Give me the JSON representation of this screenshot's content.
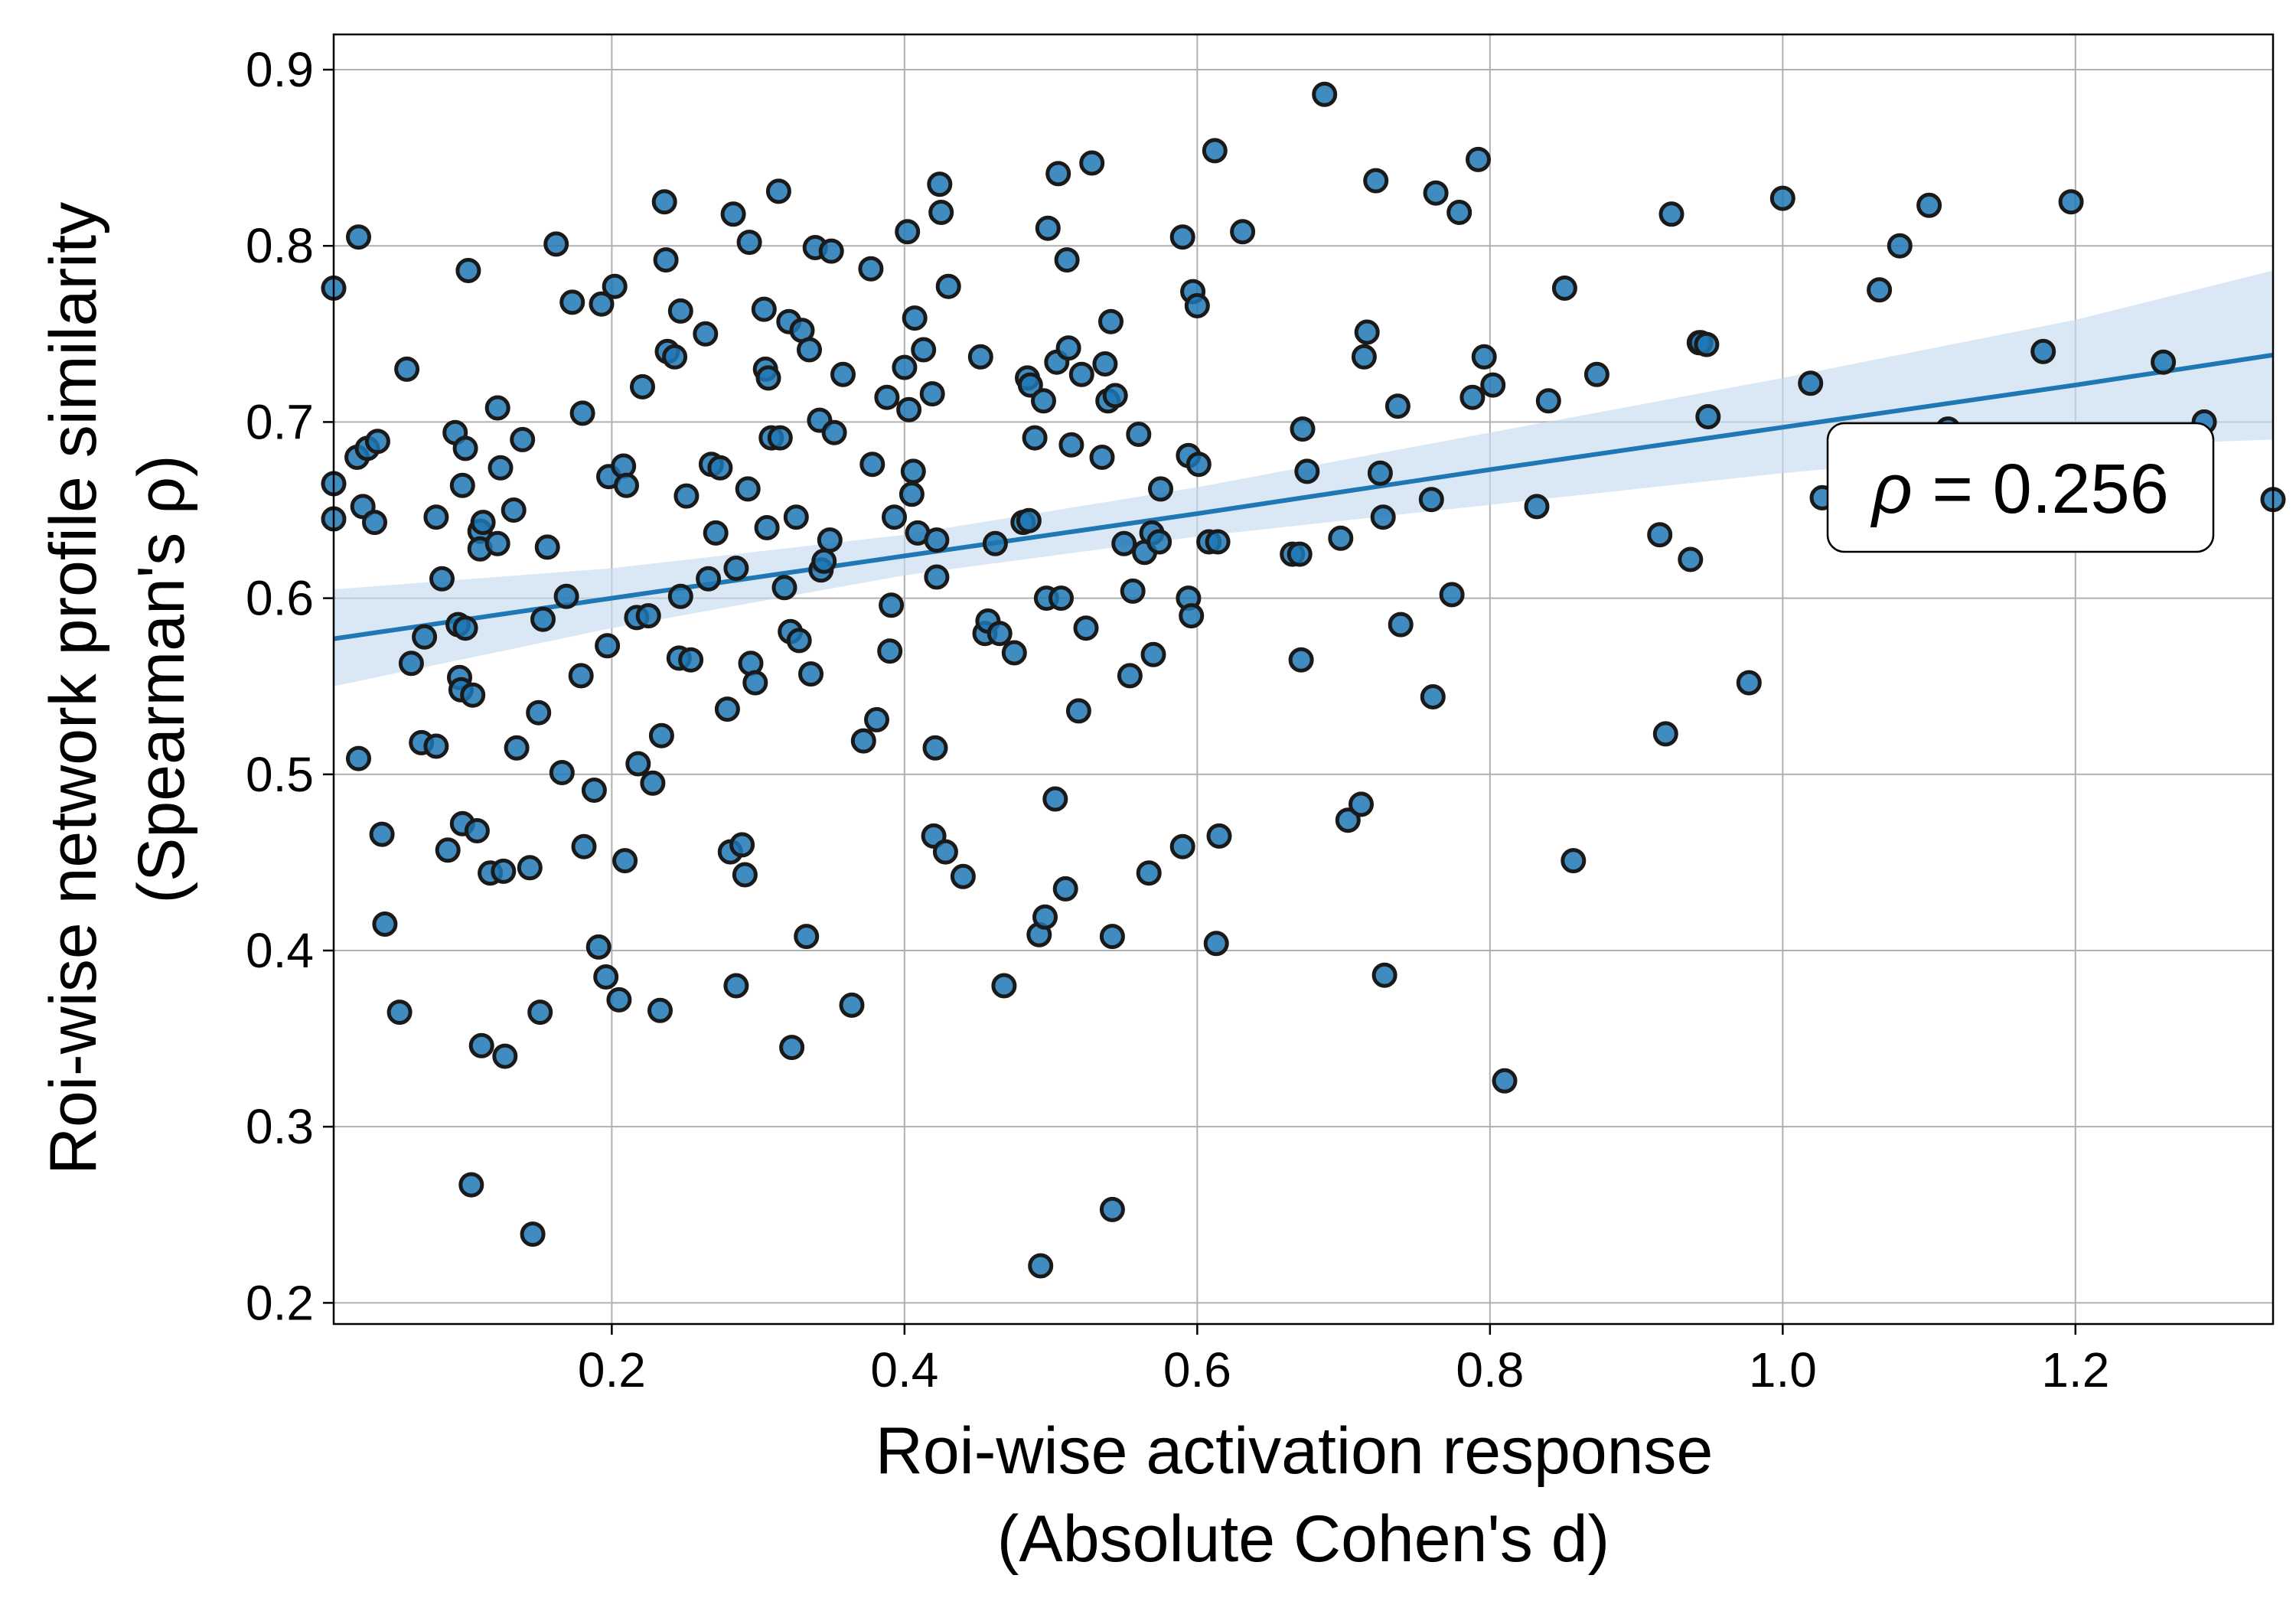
{
  "chart_data": {
    "type": "scatter",
    "title": "",
    "xlabel_lines": [
      "Roi-wise activation response",
      "(Absolute Cohen's d)"
    ],
    "ylabel_lines": [
      "Roi-wise network profile similarity",
      "(Spearman's ρ)"
    ],
    "xlim": [
      0.01,
      1.335
    ],
    "ylim": [
      0.188,
      0.92
    ],
    "xticks": [
      0.2,
      0.4,
      0.6,
      0.8,
      1.0,
      1.2
    ],
    "xtick_labels": [
      "0.2",
      "0.4",
      "0.6",
      "0.8",
      "1.0",
      "1.2"
    ],
    "yticks": [
      0.2,
      0.3,
      0.4,
      0.5,
      0.6,
      0.7,
      0.8,
      0.9
    ],
    "ytick_labels": [
      "0.2",
      "0.3",
      "0.4",
      "0.5",
      "0.6",
      "0.7",
      "0.8",
      "0.9"
    ],
    "grid": true,
    "annotation": {
      "symbol": "ρ",
      "text": " = 0.256",
      "placement": "right-middle"
    },
    "colors": {
      "point_fill": "#1f77b4",
      "point_edge": "#1a1a1a",
      "line": "#1f77b4",
      "band": "#c6dbef",
      "grid": "#b0b0b0"
    },
    "regression": {
      "x": [
        0.01,
        0.2,
        0.4,
        0.6,
        0.8,
        1.0,
        1.2,
        1.335
      ],
      "y": [
        0.577,
        0.6,
        0.624,
        0.648,
        0.673,
        0.697,
        0.721,
        0.738
      ],
      "ci_lower": [
        0.55,
        0.583,
        0.613,
        0.635,
        0.653,
        0.671,
        0.686,
        0.69
      ],
      "ci_upper": [
        0.605,
        0.617,
        0.636,
        0.663,
        0.694,
        0.725,
        0.758,
        0.786
      ]
    },
    "points": [
      [
        0.01,
        0.776
      ],
      [
        0.01,
        0.665
      ],
      [
        0.01,
        0.645
      ],
      [
        0.027,
        0.805
      ],
      [
        0.026,
        0.68
      ],
      [
        0.03,
        0.652
      ],
      [
        0.033,
        0.685
      ],
      [
        0.038,
        0.643
      ],
      [
        0.04,
        0.689
      ],
      [
        0.027,
        0.509
      ],
      [
        0.043,
        0.466
      ],
      [
        0.045,
        0.415
      ],
      [
        0.055,
        0.365
      ],
      [
        0.06,
        0.73
      ],
      [
        0.063,
        0.563
      ],
      [
        0.07,
        0.518
      ],
      [
        0.072,
        0.578
      ],
      [
        0.08,
        0.646
      ],
      [
        0.08,
        0.516
      ],
      [
        0.084,
        0.611
      ],
      [
        0.088,
        0.457
      ],
      [
        0.093,
        0.694
      ],
      [
        0.095,
        0.585
      ],
      [
        0.096,
        0.555
      ],
      [
        0.097,
        0.548
      ],
      [
        0.098,
        0.664
      ],
      [
        0.098,
        0.472
      ],
      [
        0.1,
        0.685
      ],
      [
        0.1,
        0.583
      ],
      [
        0.102,
        0.786
      ],
      [
        0.104,
        0.267
      ],
      [
        0.105,
        0.545
      ],
      [
        0.108,
        0.468
      ],
      [
        0.11,
        0.638
      ],
      [
        0.11,
        0.628
      ],
      [
        0.111,
        0.346
      ],
      [
        0.112,
        0.643
      ],
      [
        0.117,
        0.444
      ],
      [
        0.122,
        0.708
      ],
      [
        0.122,
        0.631
      ],
      [
        0.124,
        0.674
      ],
      [
        0.126,
        0.445
      ],
      [
        0.127,
        0.34
      ],
      [
        0.133,
        0.65
      ],
      [
        0.135,
        0.515
      ],
      [
        0.139,
        0.69
      ],
      [
        0.144,
        0.447
      ],
      [
        0.146,
        0.239
      ],
      [
        0.15,
        0.535
      ],
      [
        0.151,
        0.365
      ],
      [
        0.153,
        0.588
      ],
      [
        0.156,
        0.629
      ],
      [
        0.162,
        0.801
      ],
      [
        0.166,
        0.501
      ],
      [
        0.169,
        0.601
      ],
      [
        0.173,
        0.768
      ],
      [
        0.179,
        0.556
      ],
      [
        0.18,
        0.705
      ],
      [
        0.181,
        0.459
      ],
      [
        0.188,
        0.491
      ],
      [
        0.191,
        0.402
      ],
      [
        0.193,
        0.767
      ],
      [
        0.196,
        0.385
      ],
      [
        0.197,
        0.573
      ],
      [
        0.198,
        0.669
      ],
      [
        0.202,
        0.777
      ],
      [
        0.205,
        0.372
      ],
      [
        0.208,
        0.675
      ],
      [
        0.209,
        0.451
      ],
      [
        0.21,
        0.664
      ],
      [
        0.217,
        0.589
      ],
      [
        0.218,
        0.506
      ],
      [
        0.221,
        0.72
      ],
      [
        0.225,
        0.59
      ],
      [
        0.228,
        0.495
      ],
      [
        0.233,
        0.366
      ],
      [
        0.234,
        0.522
      ],
      [
        0.236,
        0.825
      ],
      [
        0.237,
        0.792
      ],
      [
        0.238,
        0.74
      ],
      [
        0.243,
        0.737
      ],
      [
        0.246,
        0.566
      ],
      [
        0.247,
        0.601
      ],
      [
        0.247,
        0.763
      ],
      [
        0.251,
        0.658
      ],
      [
        0.254,
        0.565
      ],
      [
        0.264,
        0.75
      ],
      [
        0.266,
        0.611
      ],
      [
        0.268,
        0.676
      ],
      [
        0.271,
        0.637
      ],
      [
        0.274,
        0.674
      ],
      [
        0.279,
        0.537
      ],
      [
        0.281,
        0.456
      ],
      [
        0.283,
        0.818
      ],
      [
        0.285,
        0.617
      ],
      [
        0.285,
        0.38
      ],
      [
        0.289,
        0.46
      ],
      [
        0.291,
        0.443
      ],
      [
        0.293,
        0.662
      ],
      [
        0.294,
        0.802
      ],
      [
        0.295,
        0.563
      ],
      [
        0.298,
        0.552
      ],
      [
        0.304,
        0.764
      ],
      [
        0.305,
        0.73
      ],
      [
        0.306,
        0.64
      ],
      [
        0.307,
        0.725
      ],
      [
        0.309,
        0.691
      ],
      [
        0.314,
        0.831
      ],
      [
        0.315,
        0.691
      ],
      [
        0.318,
        0.606
      ],
      [
        0.321,
        0.757
      ],
      [
        0.322,
        0.581
      ],
      [
        0.323,
        0.345
      ],
      [
        0.326,
        0.646
      ],
      [
        0.328,
        0.576
      ],
      [
        0.33,
        0.752
      ],
      [
        0.333,
        0.408
      ],
      [
        0.335,
        0.741
      ],
      [
        0.336,
        0.557
      ],
      [
        0.339,
        0.799
      ],
      [
        0.342,
        0.701
      ],
      [
        0.343,
        0.616
      ],
      [
        0.345,
        0.621
      ],
      [
        0.349,
        0.633
      ],
      [
        0.35,
        0.797
      ],
      [
        0.352,
        0.694
      ],
      [
        0.358,
        0.727
      ],
      [
        0.364,
        0.369
      ],
      [
        0.372,
        0.519
      ],
      [
        0.377,
        0.787
      ],
      [
        0.378,
        0.676
      ],
      [
        0.381,
        0.531
      ],
      [
        0.388,
        0.714
      ],
      [
        0.39,
        0.57
      ],
      [
        0.391,
        0.596
      ],
      [
        0.393,
        0.646
      ],
      [
        0.4,
        0.731
      ],
      [
        0.402,
        0.808
      ],
      [
        0.403,
        0.707
      ],
      [
        0.405,
        0.659
      ],
      [
        0.406,
        0.672
      ],
      [
        0.407,
        0.759
      ],
      [
        0.409,
        0.637
      ],
      [
        0.413,
        0.741
      ],
      [
        0.419,
        0.716
      ],
      [
        0.42,
        0.465
      ],
      [
        0.421,
        0.515
      ],
      [
        0.422,
        0.633
      ],
      [
        0.422,
        0.612
      ],
      [
        0.424,
        0.835
      ],
      [
        0.425,
        0.819
      ],
      [
        0.428,
        0.456
      ],
      [
        0.43,
        0.777
      ],
      [
        0.44,
        0.442
      ],
      [
        0.452,
        0.737
      ],
      [
        0.455,
        0.58
      ],
      [
        0.457,
        0.587
      ],
      [
        0.462,
        0.631
      ],
      [
        0.465,
        0.58
      ],
      [
        0.468,
        0.38
      ],
      [
        0.475,
        0.569
      ],
      [
        0.481,
        0.643
      ],
      [
        0.484,
        0.725
      ],
      [
        0.485,
        0.644
      ],
      [
        0.486,
        0.721
      ],
      [
        0.489,
        0.691
      ],
      [
        0.492,
        0.409
      ],
      [
        0.493,
        0.221
      ],
      [
        0.495,
        0.712
      ],
      [
        0.496,
        0.419
      ],
      [
        0.497,
        0.6
      ],
      [
        0.498,
        0.81
      ],
      [
        0.503,
        0.486
      ],
      [
        0.504,
        0.734
      ],
      [
        0.505,
        0.841
      ],
      [
        0.507,
        0.6
      ],
      [
        0.51,
        0.435
      ],
      [
        0.511,
        0.792
      ],
      [
        0.512,
        0.742
      ],
      [
        0.514,
        0.687
      ],
      [
        0.519,
        0.536
      ],
      [
        0.521,
        0.727
      ],
      [
        0.524,
        0.583
      ],
      [
        0.528,
        0.847
      ],
      [
        0.535,
        0.68
      ],
      [
        0.537,
        0.733
      ],
      [
        0.539,
        0.712
      ],
      [
        0.541,
        0.757
      ],
      [
        0.542,
        0.408
      ],
      [
        0.542,
        0.253
      ],
      [
        0.544,
        0.715
      ],
      [
        0.55,
        0.631
      ],
      [
        0.554,
        0.556
      ],
      [
        0.556,
        0.604
      ],
      [
        0.56,
        0.693
      ],
      [
        0.564,
        0.626
      ],
      [
        0.567,
        0.444
      ],
      [
        0.569,
        0.637
      ],
      [
        0.57,
        0.568
      ],
      [
        0.574,
        0.632
      ],
      [
        0.575,
        0.662
      ],
      [
        0.59,
        0.459
      ],
      [
        0.59,
        0.805
      ],
      [
        0.594,
        0.6
      ],
      [
        0.594,
        0.681
      ],
      [
        0.596,
        0.59
      ],
      [
        0.597,
        0.774
      ],
      [
        0.6,
        0.766
      ],
      [
        0.601,
        0.676
      ],
      [
        0.608,
        0.632
      ],
      [
        0.612,
        0.854
      ],
      [
        0.613,
        0.404
      ],
      [
        0.614,
        0.632
      ],
      [
        0.615,
        0.465
      ],
      [
        0.631,
        0.808
      ],
      [
        0.665,
        0.625
      ],
      [
        0.67,
        0.625
      ],
      [
        0.671,
        0.565
      ],
      [
        0.672,
        0.696
      ],
      [
        0.675,
        0.672
      ],
      [
        0.687,
        0.886
      ],
      [
        0.698,
        0.634
      ],
      [
        0.703,
        0.474
      ],
      [
        0.712,
        0.483
      ],
      [
        0.714,
        0.737
      ],
      [
        0.716,
        0.751
      ],
      [
        0.722,
        0.837
      ],
      [
        0.725,
        0.671
      ],
      [
        0.727,
        0.646
      ],
      [
        0.728,
        0.386
      ],
      [
        0.737,
        0.709
      ],
      [
        0.739,
        0.585
      ],
      [
        0.76,
        0.656
      ],
      [
        0.761,
        0.544
      ],
      [
        0.763,
        0.83
      ],
      [
        0.774,
        0.602
      ],
      [
        0.779,
        0.819
      ],
      [
        0.788,
        0.714
      ],
      [
        0.792,
        0.849
      ],
      [
        0.796,
        0.737
      ],
      [
        0.802,
        0.721
      ],
      [
        0.81,
        0.326
      ],
      [
        0.832,
        0.652
      ],
      [
        0.84,
        0.712
      ],
      [
        0.851,
        0.776
      ],
      [
        0.857,
        0.451
      ],
      [
        0.873,
        0.727
      ],
      [
        0.916,
        0.636
      ],
      [
        0.92,
        0.523
      ],
      [
        0.924,
        0.818
      ],
      [
        0.937,
        0.622
      ],
      [
        0.943,
        0.745
      ],
      [
        0.944,
        0.745
      ],
      [
        0.948,
        0.744
      ],
      [
        0.949,
        0.703
      ],
      [
        0.977,
        0.552
      ],
      [
        1.0,
        0.827
      ],
      [
        1.019,
        0.722
      ],
      [
        1.027,
        0.657
      ],
      [
        1.066,
        0.775
      ],
      [
        1.08,
        0.8
      ],
      [
        1.1,
        0.823
      ],
      [
        1.113,
        0.696
      ],
      [
        1.178,
        0.74
      ],
      [
        1.197,
        0.825
      ],
      [
        1.26,
        0.734
      ],
      [
        1.288,
        0.7
      ],
      [
        1.336,
        0.656
      ]
    ]
  }
}
